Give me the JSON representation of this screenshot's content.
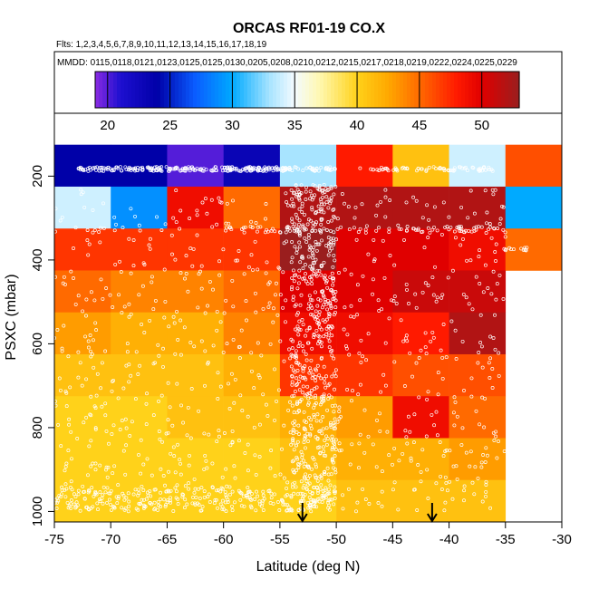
{
  "chart_data": {
    "type": "heatmap",
    "title": "ORCAS RF01-19 CO.X",
    "flights_line": "Flts: 1,2,3,4,5,6,7,8,9,10,11,12,13,14,15,16,17,18,19",
    "dates_line": "MMDD: 0115,0118,0121,0123,0125,0125,0130,0205,0208,0210,0212,0215,0217,0218,0219,0222,0224,0225,0229",
    "xlabel": "Latitude (deg N)",
    "ylabel": "PSXC (mbar)",
    "xlim": [
      -75,
      -30
    ],
    "ylim": [
      1025,
      50
    ],
    "x_ticks": [
      -75,
      -70,
      -65,
      -60,
      -55,
      -50,
      -45,
      -40,
      -35,
      -30
    ],
    "x_tick_labels": [
      "-75",
      "-70",
      "-65",
      "-60",
      "-55",
      "-50",
      "-45",
      "-40",
      "-35",
      "-30"
    ],
    "y_ticks": [
      200,
      400,
      600,
      800,
      1000
    ],
    "y_tick_labels": [
      "200",
      "400",
      "600",
      "800",
      "1000"
    ],
    "colorbar": {
      "range": [
        19,
        53
      ],
      "ticks": [
        20,
        25,
        30,
        35,
        40,
        45,
        50
      ],
      "tick_labels": [
        "20",
        "25",
        "30",
        "35",
        "40",
        "45",
        "50"
      ],
      "stops": [
        {
          "value": 19,
          "color": "#8a2be2"
        },
        {
          "value": 21,
          "color": "#1e0fd0"
        },
        {
          "value": 24,
          "color": "#0000a8"
        },
        {
          "value": 27,
          "color": "#0a5cff"
        },
        {
          "value": 30,
          "color": "#00aaff"
        },
        {
          "value": 33,
          "color": "#a8e4ff"
        },
        {
          "value": 35,
          "color": "#f4fbff"
        },
        {
          "value": 37,
          "color": "#fff8b0"
        },
        {
          "value": 40,
          "color": "#ffd21a"
        },
        {
          "value": 42.5,
          "color": "#ffa800"
        },
        {
          "value": 45,
          "color": "#ff6a00"
        },
        {
          "value": 48,
          "color": "#ff1a00"
        },
        {
          "value": 50,
          "color": "#e00000"
        },
        {
          "value": 53,
          "color": "#9a1e1e"
        }
      ]
    },
    "lat_bins": [
      -75,
      -70,
      -65,
      -60,
      -55,
      -50,
      -45,
      -40,
      -35
    ],
    "pressure_bins": [
      100,
      200,
      300,
      400,
      500,
      600,
      700,
      800,
      900,
      1000
    ],
    "cell_values": [
      [
        24,
        24,
        20,
        23,
        33,
        48,
        41,
        34,
        46
      ],
      [
        34,
        29,
        49,
        45,
        52,
        52,
        52,
        52,
        30
      ],
      [
        47,
        47,
        47,
        47,
        53,
        50,
        50,
        49,
        45
      ],
      [
        45,
        44,
        44,
        45,
        50,
        50,
        51,
        51,
        null
      ],
      [
        43,
        42,
        42,
        44,
        49,
        49,
        48,
        52,
        null
      ],
      [
        41,
        41,
        41,
        42,
        47,
        47,
        46,
        46,
        null
      ],
      [
        40,
        40,
        41,
        41,
        42,
        43,
        49,
        45,
        null
      ],
      [
        40,
        40,
        40,
        40,
        41,
        42,
        42,
        43,
        null
      ],
      [
        40,
        40,
        40,
        40,
        40,
        41,
        41,
        41,
        null
      ]
    ],
    "series": [
      {
        "name": "flight track samples",
        "marker": "white open circle"
      }
    ],
    "annotations": [
      {
        "type": "arrow",
        "x": -53,
        "y_pressure": 1025,
        "direction": "down"
      },
      {
        "type": "arrow",
        "x": -41.5,
        "y_pressure": 1025,
        "direction": "down"
      }
    ]
  },
  "colors": {
    "axis": "#000000",
    "marker": "#ffffff",
    "background": "#ffffff"
  }
}
